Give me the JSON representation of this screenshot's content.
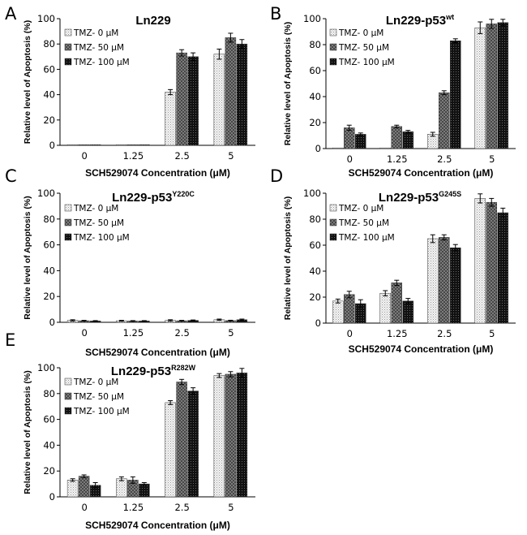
{
  "legend": {
    "entries": [
      "TMZ- 0 μM",
      "TMZ- 50 μM",
      "TMZ- 100 μM"
    ],
    "colors": [
      "#e6e6e6",
      "#7a7a7a",
      "#1c1c1c"
    ]
  },
  "chart_data": [
    {
      "type": "bar",
      "panel": "A",
      "title_main": "Ln229",
      "title_sup": "",
      "categories": [
        "0",
        "1.25",
        "2.5",
        "5"
      ],
      "series": [
        {
          "name": "TMZ- 0 μM",
          "values": [
            0.3,
            0.3,
            42,
            72
          ],
          "errors": [
            0,
            0,
            2,
            4
          ]
        },
        {
          "name": "TMZ- 50 μM",
          "values": [
            0.3,
            0.5,
            73,
            85
          ],
          "errors": [
            0,
            0,
            2.5,
            3.5
          ]
        },
        {
          "name": "TMZ- 100 μM",
          "values": [
            0.3,
            0.3,
            70,
            80
          ],
          "errors": [
            0,
            0,
            3,
            3.5
          ]
        }
      ],
      "yticks": [
        0,
        20,
        40,
        60,
        80,
        100
      ],
      "ylim": [
        0,
        100
      ],
      "xlabel": "SCH529074 Concentration (μM)",
      "ylabel": "Relative level of Apoptosis (%)"
    },
    {
      "type": "bar",
      "panel": "B",
      "title_main": "Ln229-p53",
      "title_sup": "wt",
      "categories": [
        "0",
        "1.25",
        "2.5",
        "5"
      ],
      "series": [
        {
          "name": "TMZ- 0 μM",
          "values": [
            0.3,
            0.3,
            11,
            93
          ],
          "errors": [
            0,
            0,
            1.5,
            4.5
          ]
        },
        {
          "name": "TMZ- 50 μM",
          "values": [
            16,
            17,
            43,
            96
          ],
          "errors": [
            2,
            1,
            1.5,
            3.5
          ]
        },
        {
          "name": "TMZ- 100 μM",
          "values": [
            11,
            13,
            83,
            97
          ],
          "errors": [
            1,
            1,
            1.5,
            2.5
          ]
        }
      ],
      "yticks": [
        0,
        20,
        40,
        60,
        80,
        100
      ],
      "ylim": [
        0,
        100
      ],
      "xlabel": "SCH529074 Concentration (μM)",
      "ylabel": "Relative level of Apoptosis (%)"
    },
    {
      "type": "bar",
      "panel": "C",
      "title_main": "Ln229-p53",
      "title_sup": "Y220C",
      "categories": [
        "0",
        "1.25",
        "2.5",
        "5"
      ],
      "series": [
        {
          "name": "TMZ- 0 μM",
          "values": [
            1.5,
            1.2,
            1.5,
            2
          ],
          "errors": [
            0.5,
            0.3,
            0.5,
            0.5
          ]
        },
        {
          "name": "TMZ- 50 μM",
          "values": [
            1.2,
            1.0,
            1.2,
            1.3
          ],
          "errors": [
            0.3,
            0.3,
            0.3,
            0.3
          ]
        },
        {
          "name": "TMZ- 100 μM",
          "values": [
            1.0,
            1.0,
            1.5,
            2
          ],
          "errors": [
            0.3,
            0.3,
            0.3,
            0.5
          ]
        }
      ],
      "yticks": [
        0,
        20,
        40,
        60,
        80,
        100
      ],
      "ylim": [
        0,
        100
      ],
      "xlabel": "SCH529074 Concentration (μM)",
      "ylabel": "Relative level of Apoptosis (%)"
    },
    {
      "type": "bar",
      "panel": "D",
      "title_main": "Ln229-p53",
      "title_sup": "G245S",
      "categories": [
        "0",
        "1.25",
        "2.5",
        "5"
      ],
      "series": [
        {
          "name": "TMZ- 0 μM",
          "values": [
            17,
            23,
            65,
            96
          ],
          "errors": [
            1.5,
            2,
            3,
            3.5
          ]
        },
        {
          "name": "TMZ- 50 μM",
          "values": [
            22,
            31,
            66,
            93
          ],
          "errors": [
            2.5,
            2,
            2,
            3
          ]
        },
        {
          "name": "TMZ- 100 μM",
          "values": [
            15,
            17,
            58,
            85
          ],
          "errors": [
            3,
            2,
            2.5,
            3.5
          ]
        }
      ],
      "yticks": [
        0,
        20,
        40,
        60,
        80,
        100
      ],
      "ylim": [
        0,
        100
      ],
      "xlabel": "SCH529074 Concentration (μM)",
      "ylabel": "Relative level of Apoptosis (%)"
    },
    {
      "type": "bar",
      "panel": "E",
      "title_main": "Ln229-p53",
      "title_sup": "R282W",
      "categories": [
        "0",
        "1.25",
        "2.5",
        "5"
      ],
      "series": [
        {
          "name": "TMZ- 0 μM",
          "values": [
            13,
            14,
            73,
            94
          ],
          "errors": [
            1,
            1.5,
            1.5,
            1.5
          ]
        },
        {
          "name": "TMZ- 50 μM",
          "values": [
            16,
            13,
            89,
            95
          ],
          "errors": [
            1,
            2.5,
            2,
            2
          ]
        },
        {
          "name": "TMZ- 100 μM",
          "values": [
            9,
            10,
            82,
            96
          ],
          "errors": [
            2,
            1,
            2.5,
            3.5
          ]
        }
      ],
      "yticks": [
        0,
        20,
        40,
        60,
        80,
        100
      ],
      "ylim": [
        0,
        100
      ],
      "xlabel": "SCH529074 Concentration (μM)",
      "ylabel": "Relative level of Apoptosis (%)"
    }
  ]
}
